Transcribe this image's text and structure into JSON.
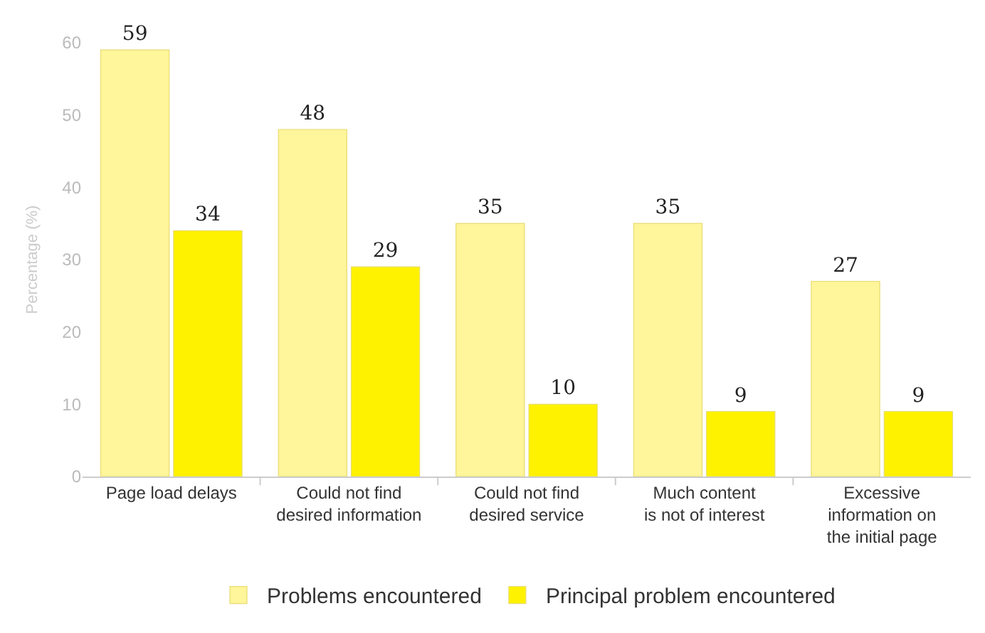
{
  "chart_data": {
    "type": "bar",
    "ylabel": "Percentage (%)",
    "categories": [
      "Page load delays",
      "Could not find\ndesired information",
      "Could not find\ndesired service",
      "Much content\nis not of interest",
      "Excessive\ninformation on\nthe initial page"
    ],
    "series": [
      {
        "name": "Problems encountered",
        "color": "#fff59a",
        "values": [
          59,
          48,
          35,
          35,
          27
        ]
      },
      {
        "name": "Principal problem encountered",
        "color": "#fff200",
        "values": [
          34,
          29,
          10,
          9,
          9
        ]
      }
    ],
    "ylim": [
      0,
      60
    ],
    "yticks": [
      0,
      10,
      20,
      30,
      40,
      50,
      60
    ],
    "grid": false,
    "legend": "bottom",
    "data_labels": true
  }
}
